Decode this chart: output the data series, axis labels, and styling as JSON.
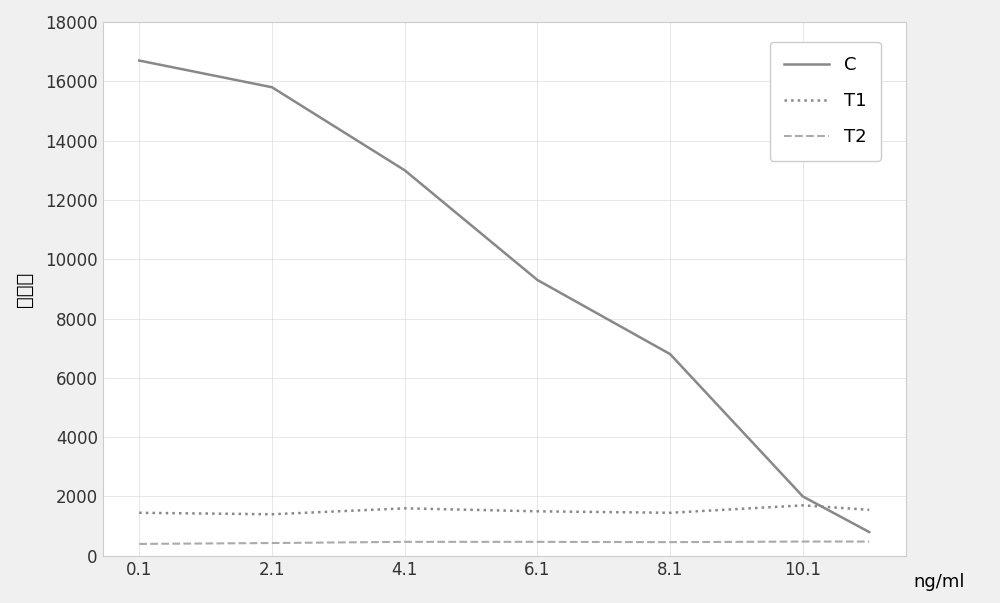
{
  "x": [
    0.1,
    2.1,
    4.1,
    6.1,
    8.1,
    10.1,
    11.1
  ],
  "C": [
    16700,
    15800,
    13000,
    9300,
    6800,
    2000,
    800
  ],
  "T1": [
    1450,
    1400,
    1600,
    1500,
    1450,
    1700,
    1550
  ],
  "T2": [
    400,
    430,
    470,
    470,
    460,
    480,
    480
  ],
  "C_color": "#888888",
  "T1_color": "#888888",
  "T2_color": "#aaaaaa",
  "xlabel": "ng/ml",
  "ylabel": "荚光値",
  "ylim": [
    0,
    18000
  ],
  "yticks": [
    0,
    2000,
    4000,
    6000,
    8000,
    10000,
    12000,
    14000,
    16000,
    18000
  ],
  "xticks": [
    0.1,
    2.1,
    4.1,
    6.1,
    8.1,
    10.1
  ],
  "xticklabels": [
    "0.1",
    "2.1",
    "4.1",
    "6.1",
    "8.1",
    "10.1"
  ],
  "legend_C": "C",
  "legend_T1": "T1",
  "legend_T2": "T2",
  "bg_color": "#ffffff",
  "fig_bg": "#f0f0f0"
}
